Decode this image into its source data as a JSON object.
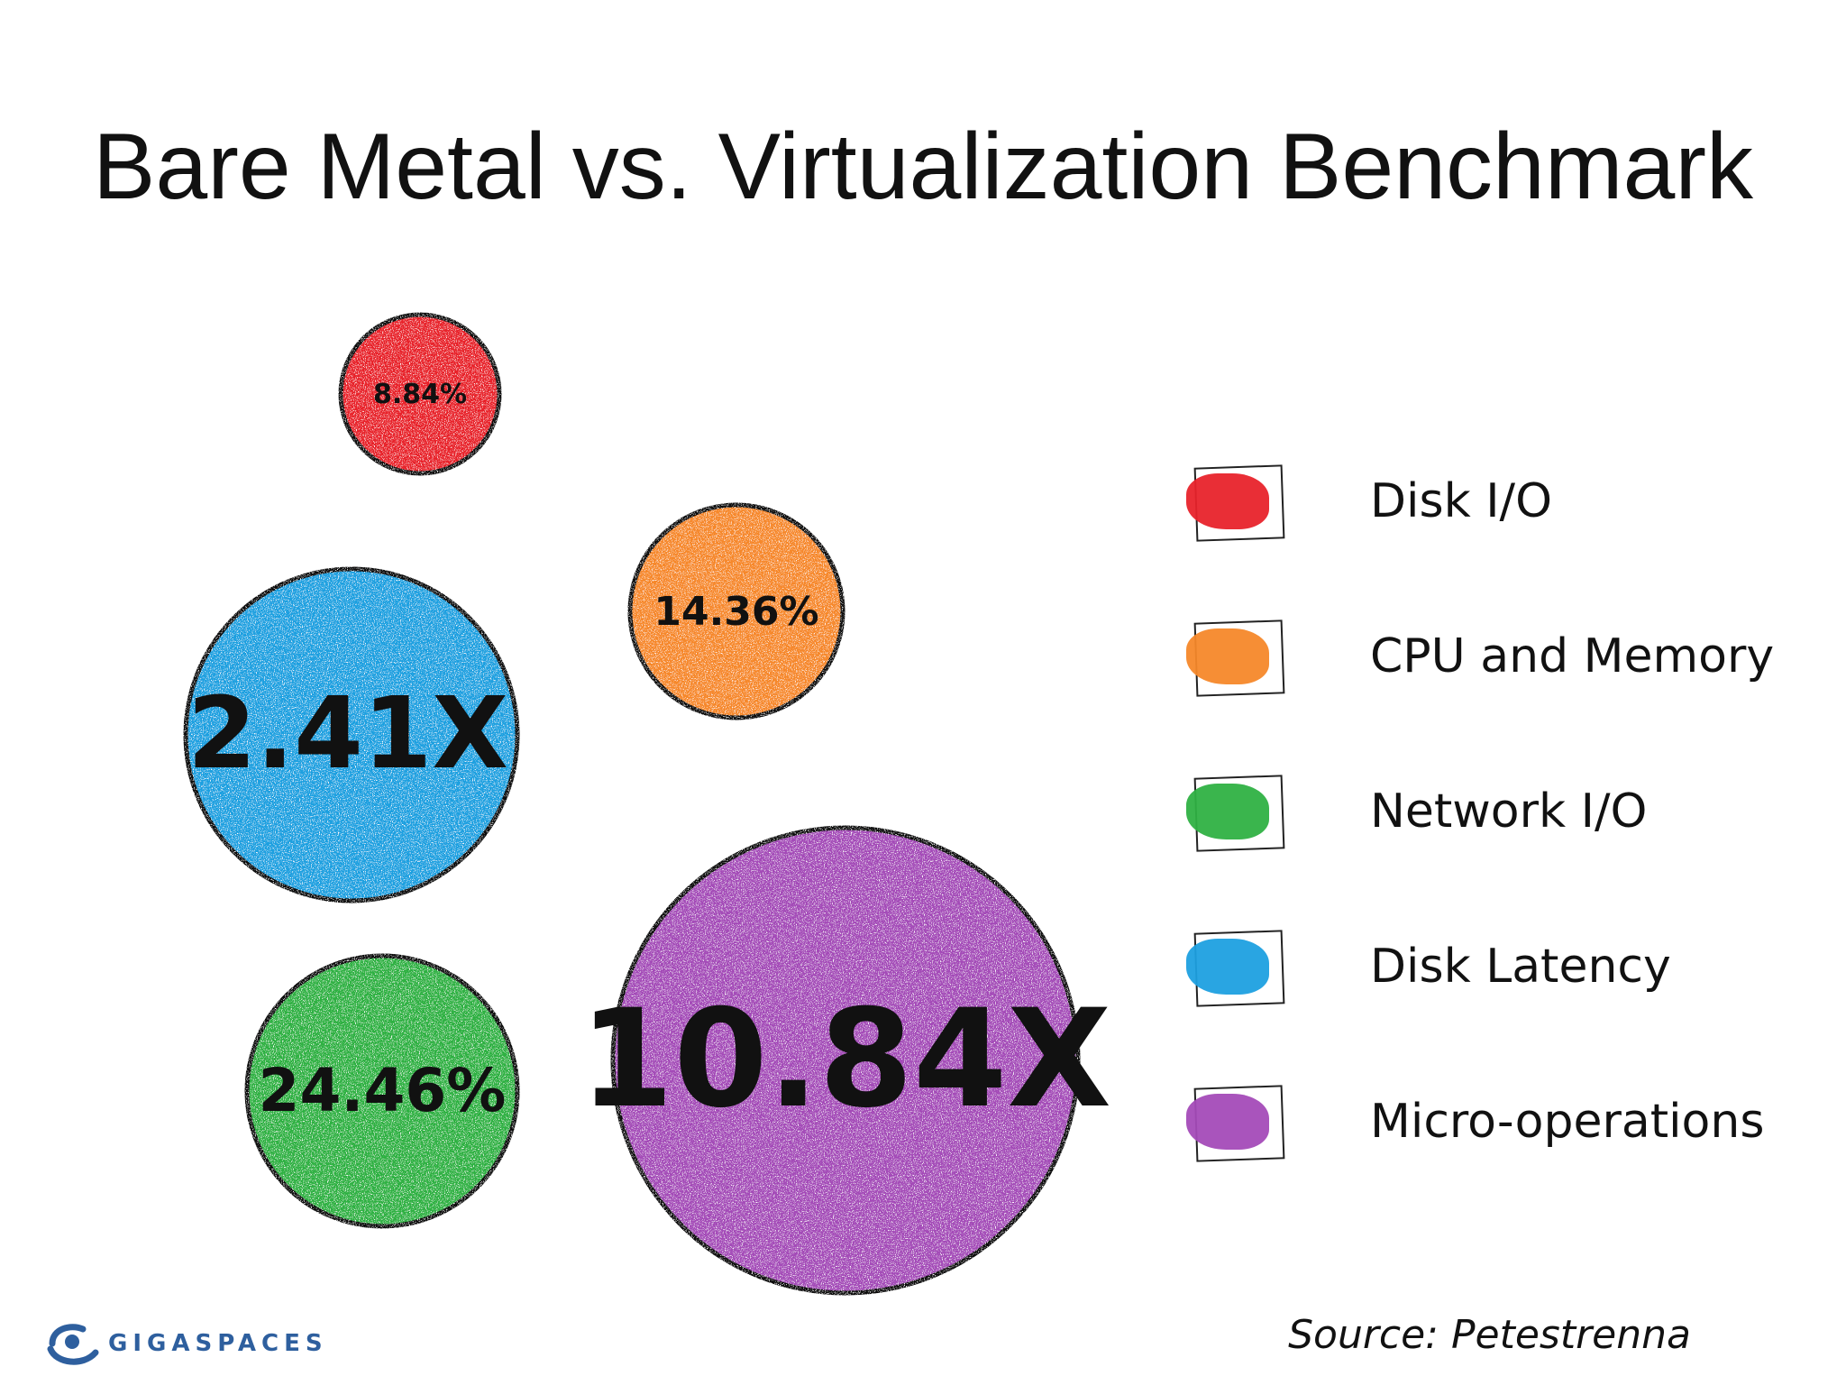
{
  "title": "Bare Metal vs. Virtualization Benchmark",
  "source": "Source: Petestrenna",
  "logo": {
    "text": "GIGASPACES",
    "icon": "gigaspaces-logo-icon",
    "color": "#2e5f9e"
  },
  "chart_data": {
    "type": "bubble",
    "title": "Bare Metal vs. Virtualization Benchmark",
    "legend_placement": "right",
    "series": [
      {
        "name": "Disk I/O",
        "label": "8.84%",
        "color": "#e8232b"
      },
      {
        "name": "CPU and Memory",
        "label": "14.36%",
        "color": "#f6882a"
      },
      {
        "name": "Network I/O",
        "label": "24.46%",
        "color": "#2fb143"
      },
      {
        "name": "Disk Latency",
        "label": "2.41X",
        "color": "#1da0e0"
      },
      {
        "name": "Micro-operations",
        "label": "10.84X",
        "color": "#a44bb8"
      }
    ]
  }
}
